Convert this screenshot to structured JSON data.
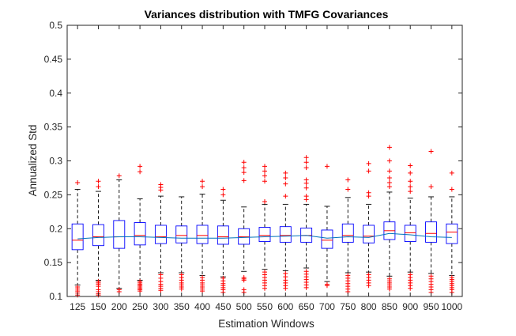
{
  "chart_data": {
    "type": "box",
    "title": "Variances distribution with TMFG Covariances",
    "xlabel": "Estimation Windows",
    "ylabel": "Annualized Std",
    "ylim": [
      0.1,
      0.5
    ],
    "yticks": [
      "0.1",
      "0.15",
      "0.2",
      "0.25",
      "0.3",
      "0.35",
      "0.4",
      "0.45",
      "0.5"
    ],
    "categories": [
      "125",
      "150",
      "200",
      "250",
      "300",
      "350",
      "400",
      "450",
      "500",
      "550",
      "600",
      "650",
      "700",
      "750",
      "800",
      "850",
      "900",
      "950",
      "1000"
    ],
    "boxes": [
      {
        "q1": 0.169,
        "median": 0.183,
        "q3": 0.207,
        "whisker_low": 0.117,
        "whisker_high": 0.258,
        "outliers_high": [
          0.268
        ],
        "outliers_low": [
          0.114,
          0.111,
          0.108,
          0.105,
          0.102
        ]
      },
      {
        "q1": 0.175,
        "median": 0.188,
        "q3": 0.206,
        "whisker_low": 0.124,
        "whisker_high": 0.255,
        "outliers_high": [
          0.262,
          0.27
        ],
        "outliers_low": [
          0.122,
          0.12,
          0.118,
          0.115,
          0.11,
          0.107,
          0.104,
          0.102
        ]
      },
      {
        "q1": 0.171,
        "median": 0.188,
        "q3": 0.212,
        "whisker_low": 0.112,
        "whisker_high": 0.272,
        "outliers_high": [
          0.278
        ],
        "outliers_low": [
          0.11,
          0.107
        ]
      },
      {
        "q1": 0.176,
        "median": 0.19,
        "q3": 0.209,
        "whisker_low": 0.124,
        "whisker_high": 0.244,
        "outliers_high": [
          0.284,
          0.292
        ],
        "outliers_low": [
          0.122,
          0.12,
          0.118,
          0.116,
          0.114,
          0.112,
          0.11,
          0.108
        ]
      },
      {
        "q1": 0.178,
        "median": 0.188,
        "q3": 0.205,
        "whisker_low": 0.135,
        "whisker_high": 0.248,
        "outliers_high": [
          0.257,
          0.261,
          0.265
        ],
        "outliers_low": [
          0.132,
          0.127,
          0.122,
          0.118,
          0.115,
          0.112,
          0.109
        ]
      },
      {
        "q1": 0.179,
        "median": 0.19,
        "q3": 0.204,
        "whisker_low": 0.135,
        "whisker_high": 0.247,
        "outliers_high": [],
        "outliers_low": [
          0.132,
          0.128,
          0.124,
          0.12,
          0.117,
          0.114,
          0.111
        ]
      },
      {
        "q1": 0.178,
        "median": 0.19,
        "q3": 0.205,
        "whisker_low": 0.131,
        "whisker_high": 0.251,
        "outliers_high": [
          0.262,
          0.27
        ],
        "outliers_low": [
          0.128,
          0.124,
          0.12,
          0.117,
          0.114,
          0.111,
          0.108
        ]
      },
      {
        "q1": 0.177,
        "median": 0.188,
        "q3": 0.204,
        "whisker_low": 0.129,
        "whisker_high": 0.242,
        "outliers_high": [
          0.25,
          0.258
        ],
        "outliers_low": [
          0.127,
          0.123,
          0.119,
          0.116,
          0.113,
          0.11,
          0.106
        ]
      },
      {
        "q1": 0.177,
        "median": 0.188,
        "q3": 0.2,
        "whisker_low": 0.137,
        "whisker_high": 0.232,
        "outliers_high": [
          0.271,
          0.283,
          0.29,
          0.298
        ],
        "outliers_low": [
          0.128,
          0.126,
          0.124,
          0.11,
          0.106
        ]
      },
      {
        "q1": 0.181,
        "median": 0.19,
        "q3": 0.202,
        "whisker_low": 0.14,
        "whisker_high": 0.236,
        "outliers_high": [
          0.24,
          0.27,
          0.278,
          0.285,
          0.292
        ],
        "outliers_low": [
          0.136,
          0.132,
          0.128,
          0.124,
          0.12,
          0.116,
          0.112
        ]
      },
      {
        "q1": 0.18,
        "median": 0.19,
        "q3": 0.203,
        "whisker_low": 0.138,
        "whisker_high": 0.236,
        "outliers_high": [
          0.248,
          0.266,
          0.275,
          0.282
        ],
        "outliers_low": [
          0.134,
          0.129,
          0.124,
          0.12,
          0.116,
          0.112
        ]
      },
      {
        "q1": 0.18,
        "median": 0.19,
        "q3": 0.201,
        "whisker_low": 0.142,
        "whisker_high": 0.236,
        "outliers_high": [
          0.243,
          0.248,
          0.26,
          0.267,
          0.272,
          0.29,
          0.298,
          0.305
        ],
        "outliers_low": [
          0.137,
          0.133,
          0.129,
          0.125,
          0.121,
          0.117,
          0.113
        ]
      },
      {
        "q1": 0.171,
        "median": 0.183,
        "q3": 0.198,
        "whisker_low": 0.122,
        "whisker_high": 0.233,
        "outliers_high": [
          0.292
        ],
        "outliers_low": [
          0.118,
          0.116
        ]
      },
      {
        "q1": 0.18,
        "median": 0.19,
        "q3": 0.207,
        "whisker_low": 0.135,
        "whisker_high": 0.246,
        "outliers_high": [
          0.258,
          0.272
        ],
        "outliers_low": [
          0.131,
          0.127,
          0.123,
          0.119,
          0.115,
          0.111,
          0.107
        ]
      },
      {
        "q1": 0.179,
        "median": 0.189,
        "q3": 0.205,
        "whisker_low": 0.136,
        "whisker_high": 0.236,
        "outliers_high": [
          0.248,
          0.253,
          0.285,
          0.296
        ],
        "outliers_low": [
          0.132,
          0.128,
          0.124,
          0.12,
          0.116
        ]
      },
      {
        "q1": 0.184,
        "median": 0.197,
        "q3": 0.21,
        "whisker_low": 0.13,
        "whisker_high": 0.254,
        "outliers_high": [
          0.262,
          0.268,
          0.275,
          0.285,
          0.3,
          0.32
        ],
        "outliers_low": [
          0.126,
          0.123,
          0.12,
          0.117,
          0.114,
          0.111
        ]
      },
      {
        "q1": 0.181,
        "median": 0.194,
        "q3": 0.205,
        "whisker_low": 0.136,
        "whisker_high": 0.245,
        "outliers_high": [
          0.255,
          0.262,
          0.27,
          0.282,
          0.293
        ],
        "outliers_low": [
          0.132,
          0.128,
          0.124,
          0.12,
          0.116,
          0.112
        ]
      },
      {
        "q1": 0.18,
        "median": 0.193,
        "q3": 0.21,
        "whisker_low": 0.134,
        "whisker_high": 0.247,
        "outliers_high": [
          0.262,
          0.314
        ],
        "outliers_low": [
          0.13,
          0.126,
          0.122,
          0.118,
          0.114,
          0.11,
          0.106
        ]
      },
      {
        "q1": 0.178,
        "median": 0.195,
        "q3": 0.207,
        "whisker_low": 0.131,
        "whisker_high": 0.247,
        "outliers_high": [
          0.258,
          0.282
        ],
        "outliers_low": [
          0.128,
          0.125,
          0.122,
          0.119,
          0.116,
          0.113,
          0.11,
          0.106
        ]
      }
    ],
    "mean_line": [
      0.185,
      0.187,
      0.188,
      0.188,
      0.187,
      0.186,
      0.186,
      0.186,
      0.187,
      0.188,
      0.189,
      0.19,
      0.186,
      0.188,
      0.187,
      0.193,
      0.191,
      0.188,
      0.187
    ],
    "colors": {
      "box": "#0000ff",
      "median": "#ff0000",
      "whisker": "#000000",
      "outlier": "#ff0000",
      "mean_line": "#0072bd",
      "axis": "#262626"
    }
  }
}
